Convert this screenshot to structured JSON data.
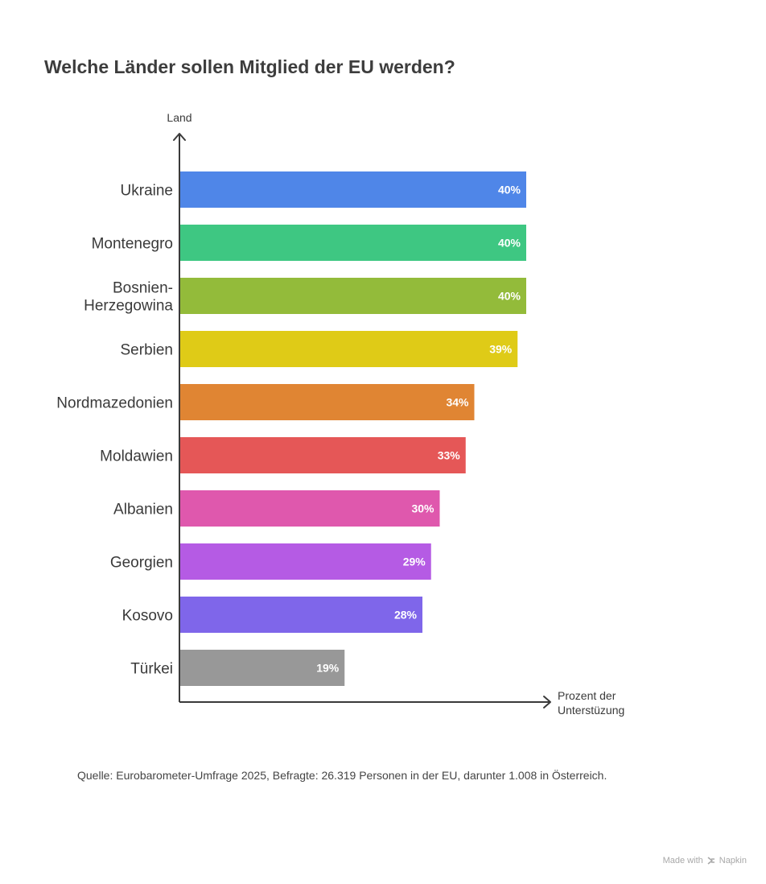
{
  "title": "Welche Länder sollen Mitglied der EU werden?",
  "source_note": "Quelle: Eurobarometer-Umfrage 2025, Befragte: 26.319 Personen in der EU, darunter 1.008 in Österreich.",
  "footer": {
    "made_with": "Made with",
    "brand": "Napkin"
  },
  "chart_data": {
    "type": "bar",
    "orientation": "horizontal",
    "ylabel": "Land",
    "xlabel": [
      "Prozent der",
      "Unterstüzung"
    ],
    "categories": [
      [
        "Ukraine"
      ],
      [
        "Montenegro"
      ],
      [
        "Bosnien-",
        "Herzegowina"
      ],
      [
        "Serbien"
      ],
      [
        "Nordmazedonien"
      ],
      [
        "Moldawien"
      ],
      [
        "Albanien"
      ],
      [
        "Georgien"
      ],
      [
        "Kosovo"
      ],
      [
        "Türkei"
      ]
    ],
    "values": [
      40,
      40,
      40,
      39,
      34,
      33,
      30,
      29,
      28,
      19
    ],
    "value_labels": [
      "40%",
      "40%",
      "40%",
      "39%",
      "34%",
      "33%",
      "30%",
      "29%",
      "28%",
      "19%"
    ],
    "colors": [
      "#4f86e8",
      "#3ec782",
      "#93bb3a",
      "#dfcb17",
      "#e08533",
      "#e55757",
      "#df58ad",
      "#b55be4",
      "#7f66ea",
      "#989898"
    ],
    "xlim": [
      0,
      40
    ],
    "grid": false,
    "legend": "none"
  }
}
